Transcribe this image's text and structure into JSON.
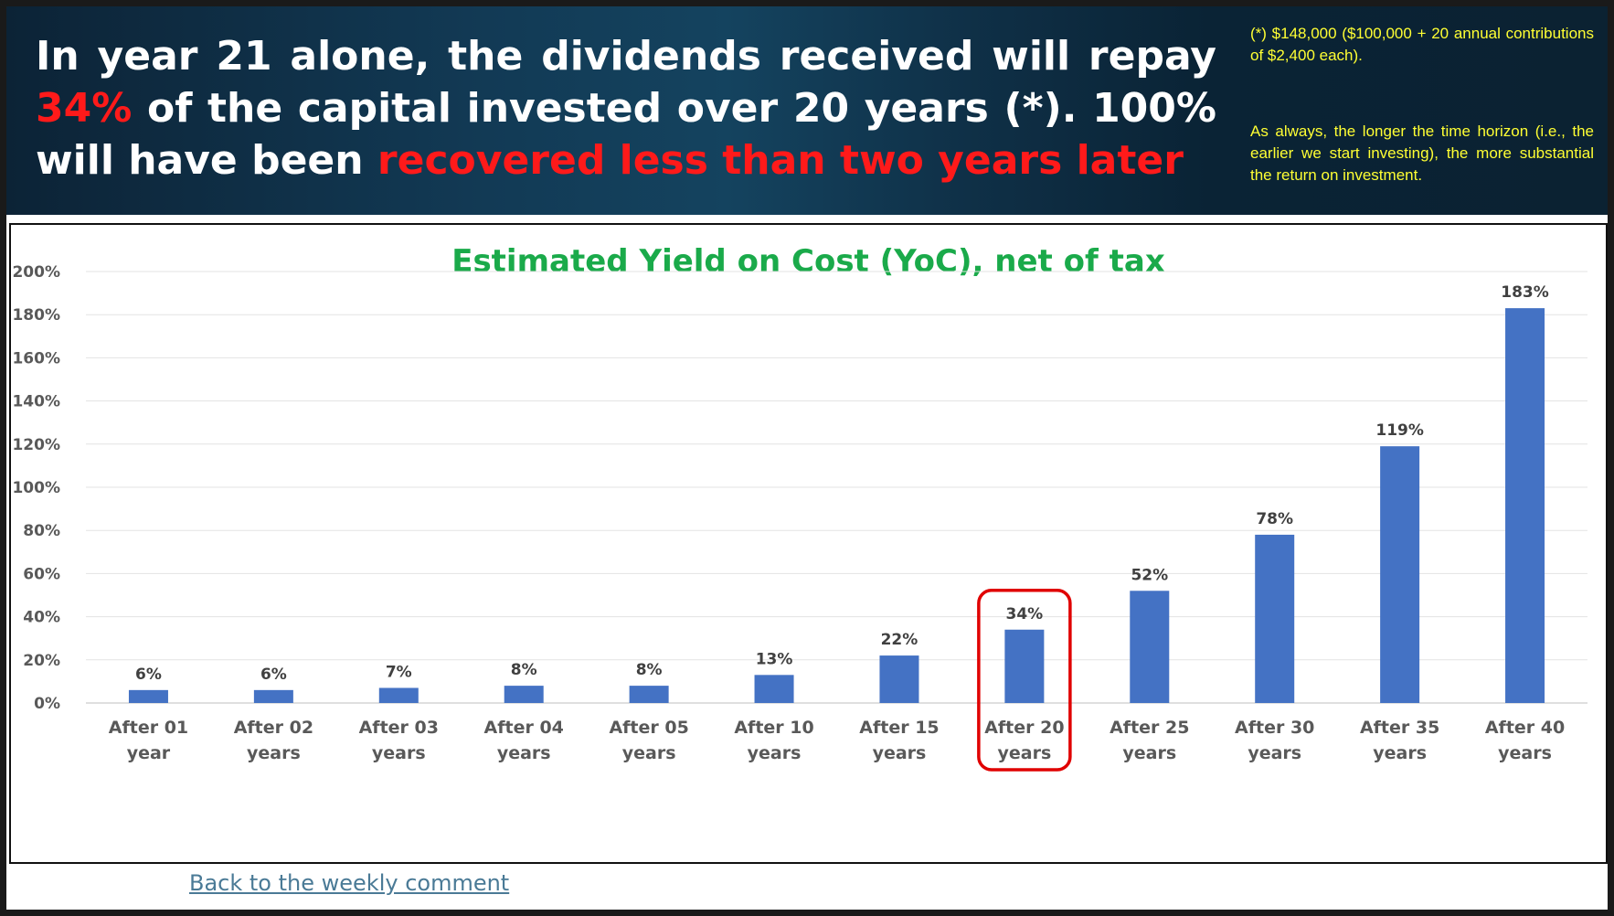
{
  "header": {
    "headline_part1": "In year 21 alone, the dividends received will repay ",
    "headline_highlight1": "34%",
    "headline_part2": " of the capital invested over 20 years (*). 100% will have been ",
    "headline_highlight2": "recovered less than two years later",
    "note1": "(*) $148,000 ($100,000 + 20 annual contributions of $2,400 each).",
    "note2": "As always, the longer the time horizon (i.e., the earlier we start investing), the more substantial the return on investment."
  },
  "colors": {
    "bar": "#4472c4",
    "highlight_box": "#e00000",
    "title": "#1aaa4a",
    "accent_red": "#ff1a1a",
    "note_yellow": "#ffff33"
  },
  "chart_data": {
    "type": "bar",
    "title": "Estimated Yield on Cost (YoC), net of tax",
    "categories": [
      [
        "After 01",
        "year"
      ],
      [
        "After 02",
        "years"
      ],
      [
        "After 03",
        "years"
      ],
      [
        "After 04",
        "years"
      ],
      [
        "After 05",
        "years"
      ],
      [
        "After 10",
        "years"
      ],
      [
        "After 15",
        "years"
      ],
      [
        "After 20",
        "years"
      ],
      [
        "After 25",
        "years"
      ],
      [
        "After 30",
        "years"
      ],
      [
        "After 35",
        "years"
      ],
      [
        "After 40",
        "years"
      ]
    ],
    "values": [
      6,
      6,
      7,
      8,
      8,
      13,
      22,
      34,
      52,
      78,
      119,
      183
    ],
    "data_labels": [
      "6%",
      "6%",
      "7%",
      "8%",
      "8%",
      "13%",
      "22%",
      "34%",
      "52%",
      "78%",
      "119%",
      "183%"
    ],
    "y_ticks": [
      "0%",
      "20%",
      "40%",
      "60%",
      "80%",
      "100%",
      "120%",
      "140%",
      "160%",
      "180%",
      "200%"
    ],
    "ylim": [
      0,
      200
    ],
    "grid": true,
    "highlighted_category": "After 20 years"
  },
  "footer": {
    "back_link": "Back to the weekly comment"
  }
}
